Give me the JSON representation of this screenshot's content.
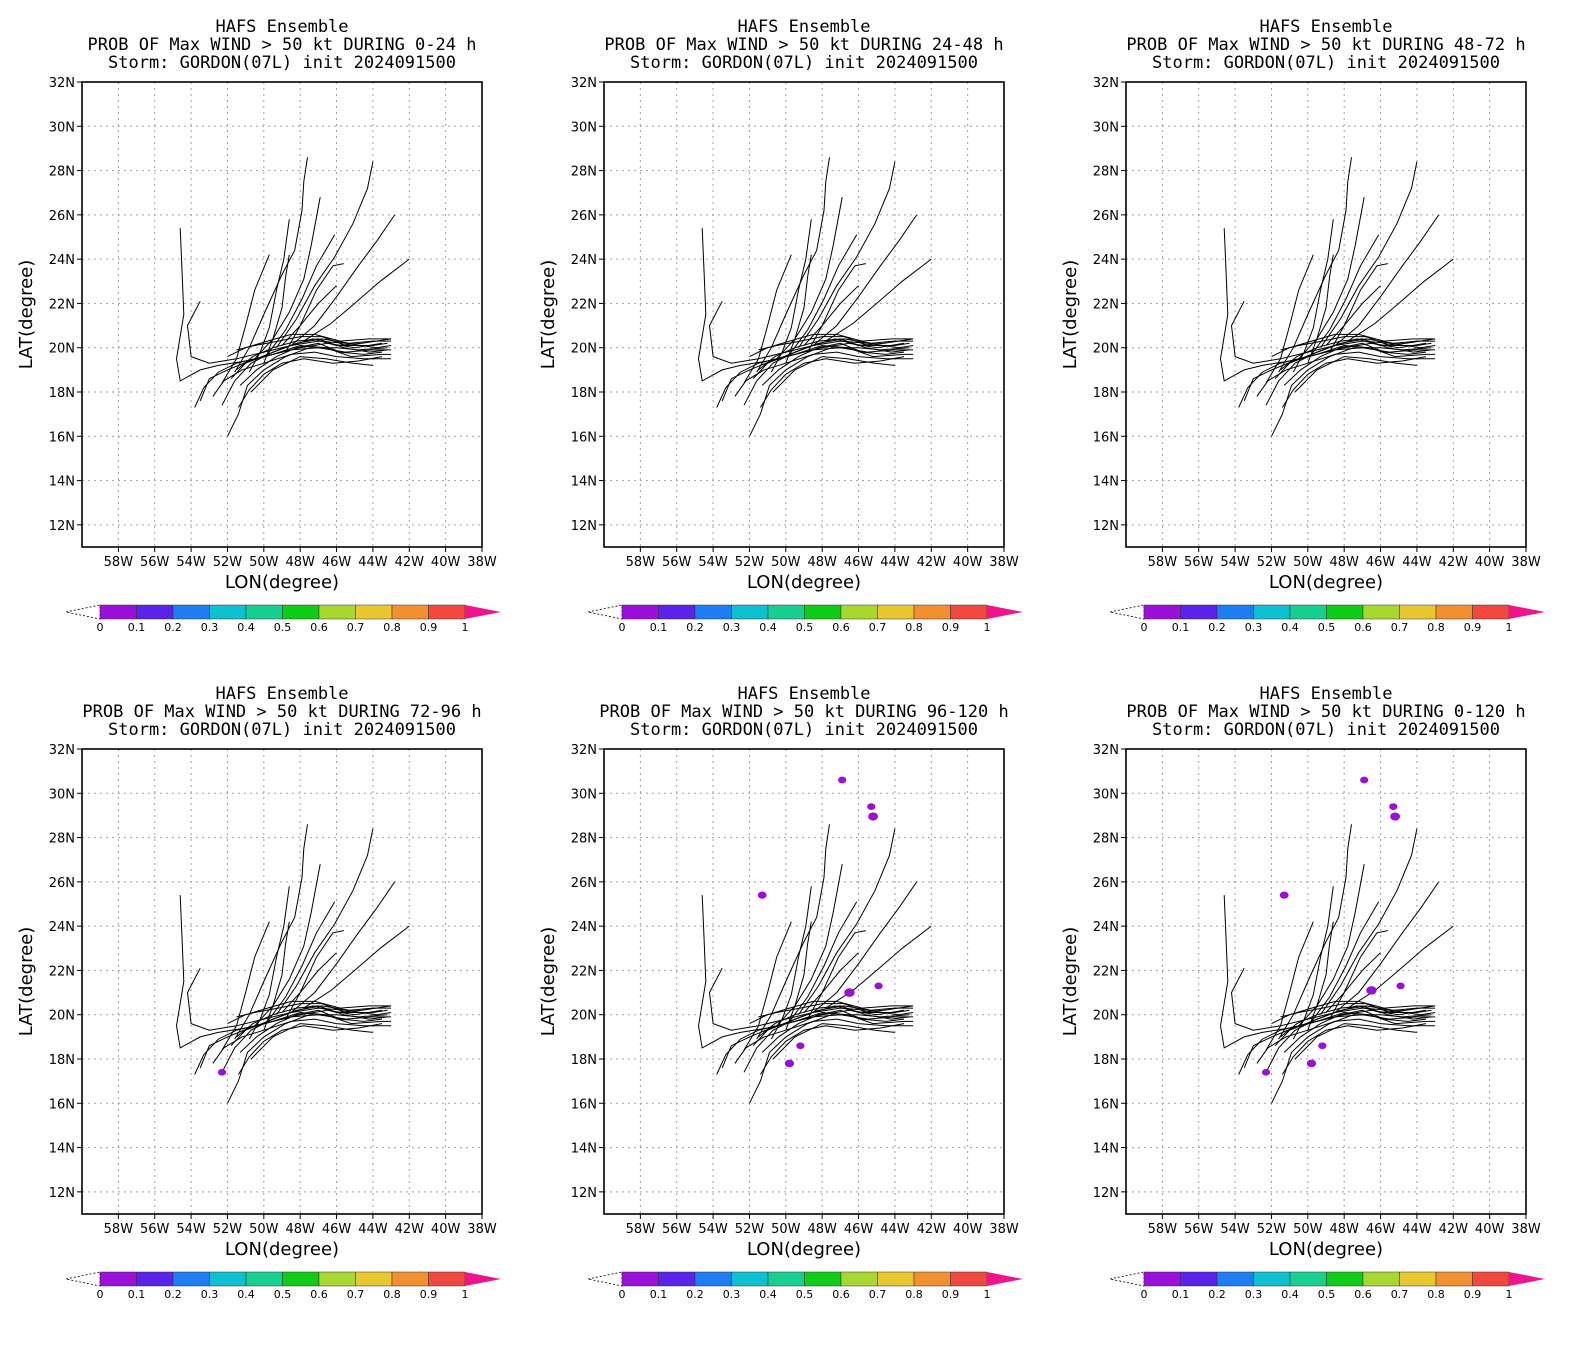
{
  "colorbar": {
    "colors": [
      "#9a10d8",
      "#5a24e8",
      "#1e7df0",
      "#10c0d0",
      "#18cf90",
      "#10cc18",
      "#a8d830",
      "#e8c830",
      "#f09030",
      "#f04a40"
    ],
    "over_color": "#f0148c",
    "labels": [
      "0",
      "0.1",
      "0.2",
      "0.3",
      "0.4",
      "0.5",
      "0.6",
      "0.7",
      "0.8",
      "0.9",
      "1"
    ]
  },
  "track_color": "#000000",
  "prob_color": "#9a10d8",
  "chart_data": [
    {
      "type": "map",
      "title_lines": [
        "HAFS Ensemble",
        "PROB OF Max WIND > 50 kt DURING  0-24 h",
        "Storm: GORDON(07L) init 2024091500"
      ],
      "xlabel": "LON(degree)",
      "ylabel": "LAT(degree)",
      "xlim": [
        -60,
        -38
      ],
      "ylim": [
        11,
        32
      ],
      "xticks": [
        "58W",
        "56W",
        "54W",
        "52W",
        "50W",
        "48W",
        "46W",
        "44W",
        "42W",
        "40W",
        "38W"
      ],
      "yticks": [
        "12N",
        "14N",
        "16N",
        "18N",
        "20N",
        "22N",
        "24N",
        "26N",
        "28N",
        "30N",
        "32N"
      ],
      "grid": true,
      "prob_areas": []
    },
    {
      "type": "map",
      "title_lines": [
        "HAFS Ensemble",
        "PROB OF Max WIND > 50 kt DURING 24-48 h",
        "Storm: GORDON(07L) init 2024091500"
      ],
      "xlabel": "LON(degree)",
      "ylabel": "LAT(degree)",
      "xlim": [
        -60,
        -38
      ],
      "ylim": [
        11,
        32
      ],
      "xticks": [
        "58W",
        "56W",
        "54W",
        "52W",
        "50W",
        "48W",
        "46W",
        "44W",
        "42W",
        "40W",
        "38W"
      ],
      "yticks": [
        "12N",
        "14N",
        "16N",
        "18N",
        "20N",
        "22N",
        "24N",
        "26N",
        "28N",
        "30N",
        "32N"
      ],
      "grid": true,
      "prob_areas": []
    },
    {
      "type": "map",
      "title_lines": [
        "HAFS Ensemble",
        "PROB OF Max WIND > 50 kt DURING 48-72 h",
        "Storm: GORDON(07L) init 2024091500"
      ],
      "xlabel": "LON(degree)",
      "ylabel": "LAT(degree)",
      "xlim": [
        -60,
        -38
      ],
      "ylim": [
        11,
        32
      ],
      "xticks": [
        "58W",
        "56W",
        "54W",
        "52W",
        "50W",
        "48W",
        "46W",
        "44W",
        "42W",
        "40W",
        "38W"
      ],
      "yticks": [
        "12N",
        "14N",
        "16N",
        "18N",
        "20N",
        "22N",
        "24N",
        "26N",
        "28N",
        "30N",
        "32N"
      ],
      "grid": true,
      "prob_areas": []
    },
    {
      "type": "map",
      "title_lines": [
        "HAFS Ensemble",
        "PROB OF Max WIND > 50 kt DURING 72-96 h",
        "Storm: GORDON(07L) init 2024091500"
      ],
      "xlabel": "LON(degree)",
      "ylabel": "LAT(degree)",
      "xlim": [
        -60,
        -38
      ],
      "ylim": [
        11,
        32
      ],
      "xticks": [
        "58W",
        "56W",
        "54W",
        "52W",
        "50W",
        "48W",
        "46W",
        "44W",
        "42W",
        "40W",
        "38W"
      ],
      "yticks": [
        "12N",
        "14N",
        "16N",
        "18N",
        "20N",
        "22N",
        "24N",
        "26N",
        "28N",
        "30N",
        "32N"
      ],
      "grid": true,
      "prob_areas": [
        {
          "lon": -52.3,
          "lat": 17.4,
          "p": 0.05
        }
      ]
    },
    {
      "type": "map",
      "title_lines": [
        "HAFS Ensemble",
        "PROB OF Max WIND > 50 kt DURING 96-120 h",
        "Storm: GORDON(07L) init 2024091500"
      ],
      "xlabel": "LON(degree)",
      "ylabel": "LAT(degree)",
      "xlim": [
        -60,
        -38
      ],
      "ylim": [
        11,
        32
      ],
      "xticks": [
        "58W",
        "56W",
        "54W",
        "52W",
        "50W",
        "48W",
        "46W",
        "44W",
        "42W",
        "40W",
        "38W"
      ],
      "yticks": [
        "12N",
        "14N",
        "16N",
        "18N",
        "20N",
        "22N",
        "24N",
        "26N",
        "28N",
        "30N",
        "32N"
      ],
      "grid": true,
      "prob_areas": [
        {
          "lon": -46.9,
          "lat": 30.6,
          "p": 0.05
        },
        {
          "lon": -45.3,
          "lat": 29.4,
          "p": 0.05
        },
        {
          "lon": -45.2,
          "lat": 28.95,
          "p": 0.08
        },
        {
          "lon": -51.3,
          "lat": 25.4,
          "p": 0.06
        },
        {
          "lon": -46.5,
          "lat": 21.0,
          "p": 0.09
        },
        {
          "lon": -44.9,
          "lat": 21.3,
          "p": 0.05
        },
        {
          "lon": -49.2,
          "lat": 18.6,
          "p": 0.05
        },
        {
          "lon": -49.8,
          "lat": 17.8,
          "p": 0.07
        }
      ]
    },
    {
      "type": "map",
      "title_lines": [
        "HAFS Ensemble",
        "PROB OF Max WIND > 50 kt DURING 0-120 h",
        "Storm: GORDON(07L) init 2024091500"
      ],
      "xlabel": "LON(degree)",
      "ylabel": "LAT(degree)",
      "xlim": [
        -60,
        -38
      ],
      "ylim": [
        11,
        32
      ],
      "xticks": [
        "58W",
        "56W",
        "54W",
        "52W",
        "50W",
        "48W",
        "46W",
        "44W",
        "42W",
        "40W",
        "38W"
      ],
      "yticks": [
        "12N",
        "14N",
        "16N",
        "18N",
        "20N",
        "22N",
        "24N",
        "26N",
        "28N",
        "30N",
        "32N"
      ],
      "grid": true,
      "prob_areas": [
        {
          "lon": -46.9,
          "lat": 30.6,
          "p": 0.05
        },
        {
          "lon": -45.3,
          "lat": 29.4,
          "p": 0.05
        },
        {
          "lon": -45.2,
          "lat": 28.95,
          "p": 0.08
        },
        {
          "lon": -51.3,
          "lat": 25.4,
          "p": 0.06
        },
        {
          "lon": -46.5,
          "lat": 21.1,
          "p": 0.09
        },
        {
          "lon": -44.9,
          "lat": 21.3,
          "p": 0.05
        },
        {
          "lon": -49.2,
          "lat": 18.6,
          "p": 0.05
        },
        {
          "lon": -49.8,
          "lat": 17.8,
          "p": 0.07
        },
        {
          "lon": -52.3,
          "lat": 17.4,
          "p": 0.05
        }
      ]
    }
  ],
  "tracks": [
    [
      [
        -54.6,
        25.4
      ],
      [
        -54.5,
        23.5
      ],
      [
        -54.4,
        21.5
      ],
      [
        -54.8,
        19.5
      ],
      [
        -54.6,
        18.5
      ],
      [
        -53.5,
        19.0
      ],
      [
        -52.5,
        19.2
      ],
      [
        -51.0,
        19.4
      ],
      [
        -49.5,
        19.7
      ],
      [
        -48.0,
        20.0
      ],
      [
        -46.5,
        20.2
      ],
      [
        -45.0,
        20.0
      ],
      [
        -43.5,
        20.2
      ]
    ],
    [
      [
        -53.5,
        22.1
      ],
      [
        -54.2,
        21.0
      ],
      [
        -54.0,
        19.6
      ],
      [
        -53.0,
        19.3
      ],
      [
        -51.5,
        19.5
      ],
      [
        -50.0,
        19.8
      ],
      [
        -48.5,
        20.1
      ],
      [
        -47.0,
        20.3
      ],
      [
        -45.5,
        20.2
      ],
      [
        -43.8,
        20.0
      ],
      [
        -43.0,
        20.1
      ]
    ],
    [
      [
        -53.8,
        17.3
      ],
      [
        -53.3,
        18.2
      ],
      [
        -52.5,
        18.9
      ],
      [
        -51.5,
        19.3
      ],
      [
        -50.0,
        19.6
      ],
      [
        -48.5,
        19.9
      ],
      [
        -47.0,
        20.0
      ],
      [
        -45.5,
        19.8
      ],
      [
        -44.0,
        19.9
      ],
      [
        -43.0,
        19.9
      ]
    ],
    [
      [
        -53.5,
        17.6
      ],
      [
        -53.0,
        18.6
      ],
      [
        -52.0,
        19.0
      ],
      [
        -50.8,
        19.4
      ],
      [
        -49.5,
        19.7
      ],
      [
        -48.0,
        20.1
      ],
      [
        -46.6,
        20.0
      ],
      [
        -45.2,
        19.6
      ],
      [
        -43.5,
        19.7
      ],
      [
        -43.0,
        19.7
      ]
    ],
    [
      [
        -52.8,
        17.8
      ],
      [
        -52.2,
        18.5
      ],
      [
        -51.2,
        19.0
      ],
      [
        -50.0,
        19.3
      ],
      [
        -48.5,
        19.7
      ],
      [
        -47.2,
        19.8
      ],
      [
        -46.0,
        19.6
      ],
      [
        -44.5,
        19.5
      ],
      [
        -43.0,
        19.5
      ]
    ],
    [
      [
        -52.0,
        16.0
      ],
      [
        -51.4,
        17.0
      ],
      [
        -50.9,
        18.3
      ],
      [
        -50.0,
        19.0
      ],
      [
        -48.8,
        19.6
      ],
      [
        -47.5,
        20.0
      ],
      [
        -46.0,
        20.0
      ],
      [
        -44.8,
        19.9
      ],
      [
        -43.2,
        20.0
      ]
    ],
    [
      [
        -51.4,
        17.3
      ],
      [
        -50.8,
        18.1
      ],
      [
        -50.0,
        18.8
      ],
      [
        -49.0,
        19.3
      ],
      [
        -47.8,
        19.5
      ],
      [
        -46.2,
        19.3
      ],
      [
        -44.8,
        19.4
      ],
      [
        -43.5,
        19.6
      ]
    ],
    [
      [
        -52.3,
        17.4
      ],
      [
        -51.6,
        18.5
      ],
      [
        -50.7,
        19.3
      ],
      [
        -49.5,
        19.8
      ],
      [
        -48.2,
        20.2
      ],
      [
        -46.8,
        20.4
      ],
      [
        -45.3,
        20.2
      ],
      [
        -44.0,
        20.3
      ],
      [
        -43.0,
        20.3
      ]
    ],
    [
      [
        -51.8,
        18.6
      ],
      [
        -51.0,
        19.3
      ],
      [
        -49.8,
        19.7
      ],
      [
        -48.5,
        20.1
      ],
      [
        -47.3,
        20.4
      ],
      [
        -46.0,
        20.1
      ],
      [
        -44.6,
        20.2
      ],
      [
        -43.0,
        20.4
      ]
    ],
    [
      [
        -52.0,
        19.6
      ],
      [
        -51.0,
        20.0
      ],
      [
        -49.8,
        20.3
      ],
      [
        -48.5,
        20.6
      ],
      [
        -47.2,
        20.6
      ],
      [
        -45.8,
        20.3
      ],
      [
        -44.2,
        20.4
      ],
      [
        -43.0,
        20.4
      ]
    ],
    [
      [
        -51.5,
        19.9
      ],
      [
        -50.5,
        20.1
      ],
      [
        -49.2,
        20.3
      ],
      [
        -48.0,
        20.5
      ],
      [
        -46.8,
        20.5
      ],
      [
        -45.5,
        20.1
      ],
      [
        -44.0,
        20.1
      ],
      [
        -43.2,
        20.2
      ]
    ],
    [
      [
        -51.5,
        19.0
      ],
      [
        -50.6,
        19.6
      ],
      [
        -49.5,
        20.0
      ],
      [
        -48.2,
        20.3
      ],
      [
        -47.0,
        20.4
      ],
      [
        -45.6,
        20.0
      ],
      [
        -44.2,
        19.8
      ],
      [
        -43.2,
        19.9
      ]
    ],
    [
      [
        -51.3,
        18.3
      ],
      [
        -50.4,
        19.0
      ],
      [
        -49.3,
        19.6
      ],
      [
        -48.2,
        20.0
      ],
      [
        -47.0,
        20.2
      ],
      [
        -45.8,
        19.8
      ],
      [
        -44.5,
        19.7
      ],
      [
        -43.5,
        19.8
      ]
    ],
    [
      [
        -52.3,
        18.4
      ],
      [
        -51.5,
        19.5
      ],
      [
        -51.0,
        21.0
      ],
      [
        -50.5,
        22.6
      ],
      [
        -49.7,
        24.2
      ]
    ],
    [
      [
        -51.6,
        18.9
      ],
      [
        -50.8,
        20.0
      ],
      [
        -50.0,
        21.5
      ],
      [
        -49.0,
        23.3
      ],
      [
        -48.3,
        24.4
      ],
      [
        -47.9,
        26.2
      ],
      [
        -47.8,
        27.5
      ],
      [
        -47.6,
        28.6
      ]
    ],
    [
      [
        -50.5,
        19.5
      ],
      [
        -49.5,
        20.4
      ],
      [
        -48.6,
        21.6
      ],
      [
        -47.8,
        23.1
      ],
      [
        -47.4,
        24.6
      ],
      [
        -46.9,
        26.8
      ]
    ],
    [
      [
        -49.8,
        19.7
      ],
      [
        -48.8,
        20.8
      ],
      [
        -47.9,
        22.2
      ],
      [
        -47.1,
        23.7
      ],
      [
        -46.1,
        25.1
      ]
    ],
    [
      [
        -49.3,
        20.0
      ],
      [
        -48.2,
        21.3
      ],
      [
        -47.2,
        22.8
      ],
      [
        -46.1,
        24.1
      ],
      [
        -45.1,
        25.6
      ],
      [
        -44.3,
        27.2
      ],
      [
        -44.0,
        28.4
      ]
    ],
    [
      [
        -48.5,
        20.1
      ],
      [
        -47.2,
        21.0
      ],
      [
        -46.0,
        22.3
      ],
      [
        -44.8,
        23.7
      ],
      [
        -43.8,
        24.8
      ],
      [
        -42.8,
        26.0
      ]
    ],
    [
      [
        -47.8,
        20.3
      ],
      [
        -46.3,
        21.1
      ],
      [
        -45.0,
        22.0
      ],
      [
        -43.6,
        23.0
      ],
      [
        -42.0,
        24.0
      ]
    ],
    [
      [
        -48.8,
        19.8
      ],
      [
        -48.0,
        21.0
      ],
      [
        -47.1,
        22.6
      ],
      [
        -46.2,
        23.7
      ],
      [
        -45.6,
        23.8
      ]
    ],
    [
      [
        -50.0,
        19.3
      ],
      [
        -49.5,
        20.4
      ],
      [
        -49.0,
        21.8
      ],
      [
        -48.8,
        23.2
      ],
      [
        -48.6,
        24.2
      ]
    ],
    [
      [
        -50.8,
        18.9
      ],
      [
        -50.2,
        19.8
      ],
      [
        -49.7,
        20.9
      ],
      [
        -49.3,
        22.6
      ],
      [
        -48.9,
        24.0
      ],
      [
        -48.6,
        25.8
      ]
    ],
    [
      [
        -49.0,
        20.1
      ],
      [
        -48.0,
        21.0
      ],
      [
        -47.0,
        22.0
      ],
      [
        -46.0,
        22.8
      ]
    ],
    [
      [
        -50.7,
        18.0
      ],
      [
        -49.5,
        19.0
      ],
      [
        -48.0,
        19.6
      ],
      [
        -46.6,
        19.5
      ],
      [
        -45.1,
        19.3
      ],
      [
        -44.0,
        19.2
      ]
    ]
  ]
}
